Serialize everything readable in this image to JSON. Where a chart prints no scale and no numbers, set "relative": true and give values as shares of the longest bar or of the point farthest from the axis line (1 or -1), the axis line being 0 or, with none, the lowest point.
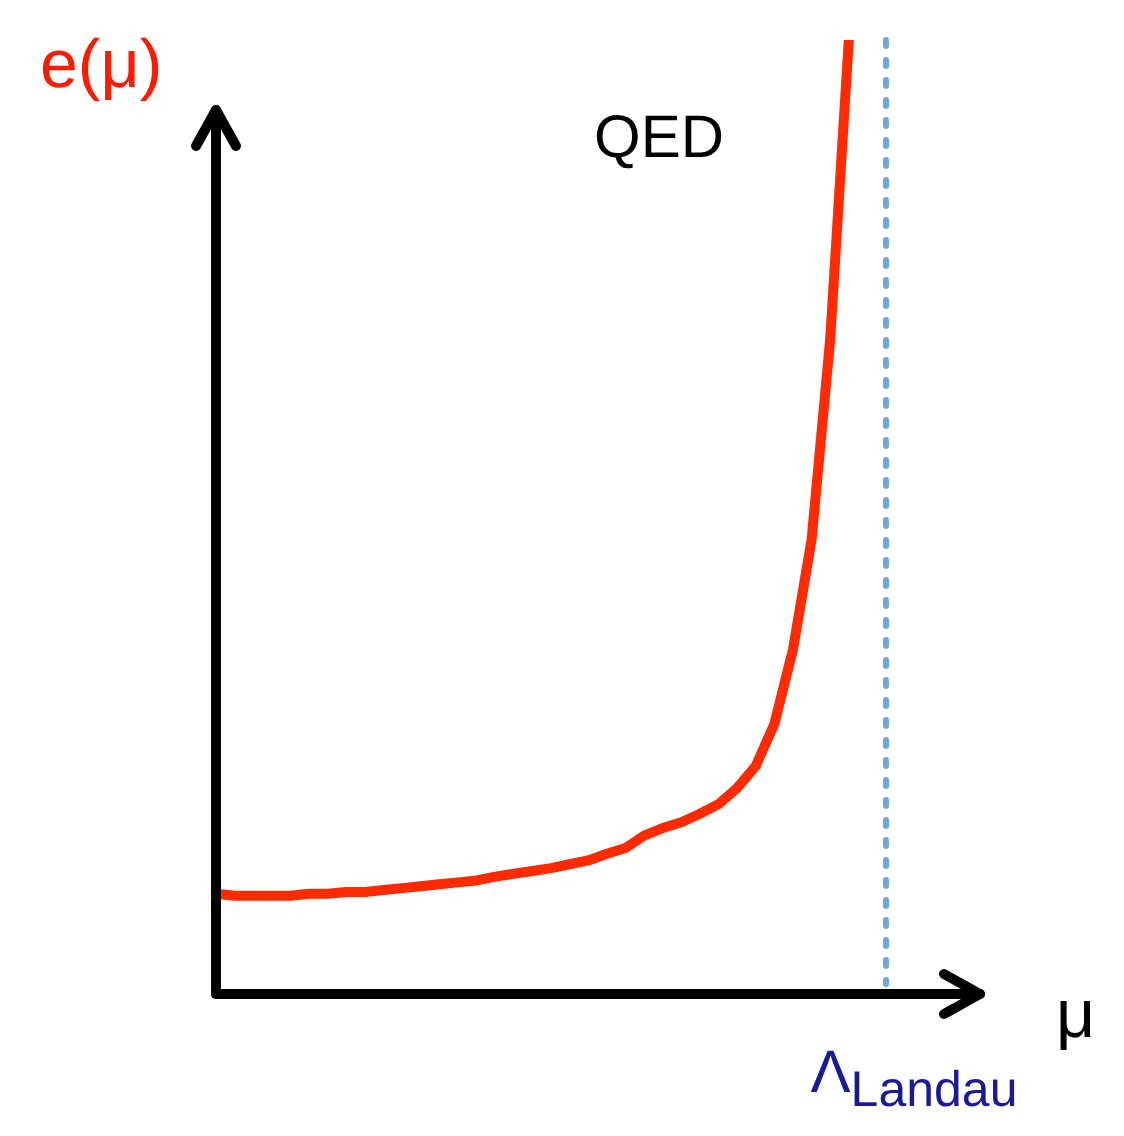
{
  "chart_data": {
    "type": "line",
    "relative": true,
    "xlabel": "μ",
    "ylabel": "e(μ)",
    "annotations": [
      "QED"
    ],
    "categories": [
      null,
      null,
      null,
      null,
      null,
      null,
      null,
      null,
      null,
      null,
      null,
      null,
      null,
      null,
      null,
      null,
      null,
      null,
      null,
      null,
      null,
      null,
      null,
      null,
      null,
      null,
      null,
      null,
      null,
      null,
      null,
      null,
      null,
      null,
      null,
      null,
      null
    ],
    "series": [
      {
        "color": "#ff2a00",
        "values": [
          0.105,
          0.103,
          0.103,
          0.103,
          0.103,
          0.105,
          0.105,
          0.107,
          0.107,
          0.109,
          0.111,
          0.113,
          0.115,
          0.117,
          0.119,
          0.123,
          0.126,
          0.129,
          0.132,
          0.136,
          0.14,
          0.147,
          0.153,
          0.166,
          0.174,
          0.18,
          0.189,
          0.199,
          0.216,
          0.239,
          0.283,
          0.361,
          0.476,
          0.686,
          1,
          null,
          null
        ]
      }
    ],
    "ref_lines": [
      {
        "axis": "x",
        "label": "Λ$_{Landau}$",
        "color": "#6fa8dc",
        "line_style": "dotted"
      }
    ],
    "marker": "none",
    "line_style": "solid"
  }
}
